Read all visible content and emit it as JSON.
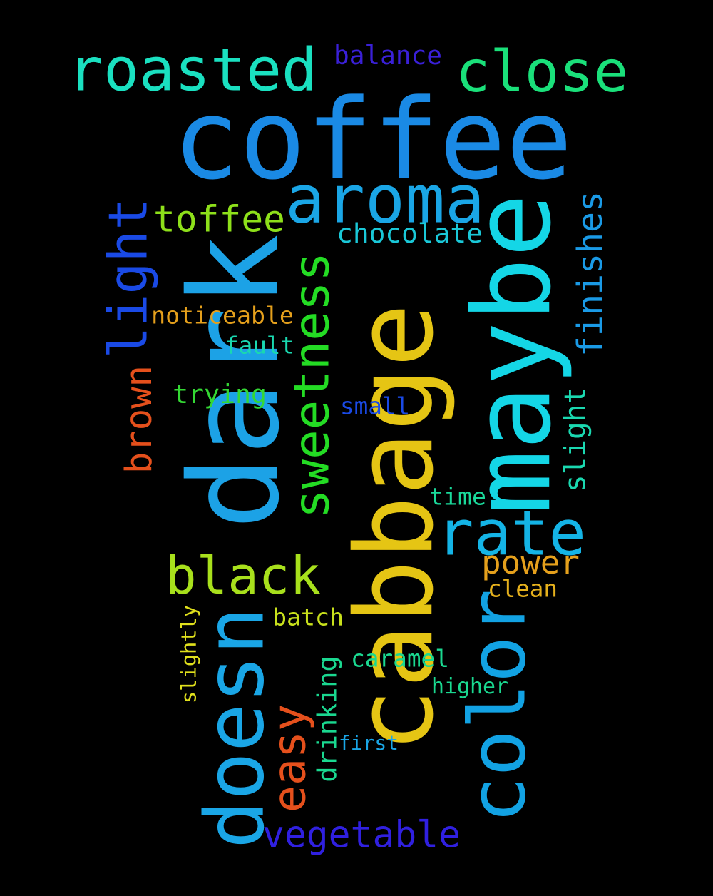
{
  "background": "#000000",
  "words": [
    {
      "id": "coffee",
      "text": "coffee",
      "color": "#1a8ae5"
    },
    {
      "id": "cabbage",
      "text": "cabbage",
      "color": "#e5c514"
    },
    {
      "id": "dark",
      "text": "dark",
      "color": "#1ca2e6"
    },
    {
      "id": "maybe",
      "text": "maybe",
      "color": "#14d6e6"
    },
    {
      "id": "color",
      "text": "color",
      "color": "#12a2e3"
    },
    {
      "id": "doesn",
      "text": "doesn",
      "color": "#1aa6e6"
    },
    {
      "id": "aroma",
      "text": "aroma",
      "color": "#1aa6e6"
    },
    {
      "id": "roasted",
      "text": "roasted",
      "color": "#1ae0c0"
    },
    {
      "id": "close",
      "text": "close",
      "color": "#1ae07a"
    },
    {
      "id": "sweetness",
      "text": "sweetness",
      "color": "#24dc24"
    },
    {
      "id": "rate",
      "text": "rate",
      "color": "#14b4e6"
    },
    {
      "id": "black",
      "text": "black",
      "color": "#a8e01c"
    },
    {
      "id": "light",
      "text": "light",
      "color": "#1a4ae6"
    },
    {
      "id": "toffee",
      "text": "toffee",
      "color": "#8ee01a"
    },
    {
      "id": "easy",
      "text": "easy",
      "color": "#e5501c"
    },
    {
      "id": "vegetable",
      "text": "vegetable",
      "color": "#3020e0"
    },
    {
      "id": "finishes",
      "text": "finishes",
      "color": "#1a9ae6"
    },
    {
      "id": "chocolate",
      "text": "chocolate",
      "color": "#1ac8d8"
    },
    {
      "id": "brown",
      "text": "brown",
      "color": "#e5501c"
    },
    {
      "id": "power",
      "text": "power",
      "color": "#e5a01c"
    },
    {
      "id": "slight",
      "text": "slight",
      "color": "#1ad8b0"
    },
    {
      "id": "noticeable",
      "text": "noticeable",
      "color": "#e5a01c"
    },
    {
      "id": "balance",
      "text": "balance",
      "color": "#3a20d8"
    },
    {
      "id": "fault",
      "text": "fault",
      "color": "#1ad8b0"
    },
    {
      "id": "trying",
      "text": "trying",
      "color": "#34d834"
    },
    {
      "id": "small",
      "text": "small",
      "color": "#1a4ae6"
    },
    {
      "id": "time",
      "text": "time",
      "color": "#1ad89a"
    },
    {
      "id": "clean",
      "text": "clean",
      "color": "#e5b01c"
    },
    {
      "id": "batch",
      "text": "batch",
      "color": "#c8e01c"
    },
    {
      "id": "slightly",
      "text": "slightly",
      "color": "#e0e01c"
    },
    {
      "id": "drinking",
      "text": "drinking",
      "color": "#1ad890"
    },
    {
      "id": "caramel",
      "text": "caramel",
      "color": "#1ad890"
    },
    {
      "id": "higher",
      "text": "higher",
      "color": "#1ad890"
    },
    {
      "id": "first",
      "text": "first",
      "color": "#1aa6e6"
    }
  ]
}
